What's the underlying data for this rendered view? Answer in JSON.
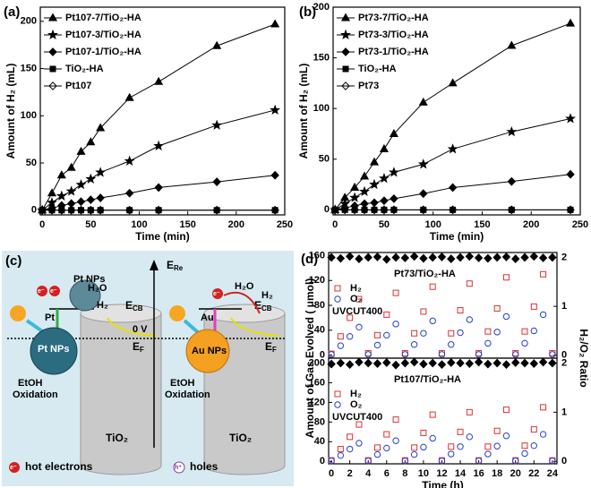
{
  "chart_data": [
    {
      "type": "line",
      "panel_label": "(a)",
      "xlabel": "Time (min)",
      "ylabel": "Amount of H₂ (mL)",
      "x": [
        0,
        10,
        20,
        30,
        40,
        50,
        60,
        90,
        120,
        180,
        240
      ],
      "xlim": [
        -2,
        250
      ],
      "xticks": [
        0,
        50,
        100,
        150,
        200,
        250
      ],
      "ylim": [
        -5,
        215
      ],
      "yticks": [
        0,
        50,
        100,
        150,
        200
      ],
      "legend": "upper left",
      "series": [
        {
          "name": "Pt107-7/TiO₂-HA",
          "color": "#000000",
          "marker": "triangle",
          "values": [
            0,
            18,
            37,
            45,
            62,
            72,
            87,
            119,
            136,
            174,
            197
          ]
        },
        {
          "name": "Pt107-3/TiO₂-HA",
          "color": "#000000",
          "marker": "star",
          "values": [
            0,
            8,
            15,
            20,
            27,
            33,
            40,
            52,
            68,
            90,
            106
          ]
        },
        {
          "name": "Pt107-1/TiO₂-HA",
          "color": "#000000",
          "marker": "diamond",
          "values": [
            0,
            2,
            5,
            7,
            9,
            11,
            13,
            18,
            24,
            30,
            37
          ]
        },
        {
          "name": "TiO₂-HA",
          "color": "#000000",
          "marker": "square",
          "values": [
            0,
            0,
            0,
            0,
            0,
            0,
            0,
            0,
            0,
            0,
            0
          ]
        },
        {
          "name": "Pt107",
          "color": "#000000",
          "marker": "diamond-open",
          "values": [
            0,
            0,
            0,
            0,
            0,
            0,
            0,
            0,
            0,
            0,
            0
          ]
        }
      ]
    },
    {
      "type": "line",
      "panel_label": "(b)",
      "xlabel": "Time (min)",
      "ylabel": "Amount of H₂ (mL)",
      "x": [
        0,
        10,
        20,
        30,
        40,
        50,
        60,
        90,
        120,
        180,
        240
      ],
      "xlim": [
        -2,
        250
      ],
      "xticks": [
        0,
        50,
        100,
        150,
        200,
        250
      ],
      "ylim": [
        -5,
        200
      ],
      "yticks": [
        0,
        50,
        100,
        150,
        200
      ],
      "legend": "upper left",
      "series": [
        {
          "name": "Pt73-7/TiO₂-HA",
          "color": "#000000",
          "marker": "triangle",
          "values": [
            0,
            12,
            22,
            33,
            47,
            60,
            75,
            106,
            125,
            162,
            184
          ]
        },
        {
          "name": "Pt73-3/TiO₂-HA",
          "color": "#000000",
          "marker": "star",
          "values": [
            0,
            6,
            12,
            18,
            25,
            31,
            37,
            45,
            60,
            77,
            90
          ]
        },
        {
          "name": "Pt73-1/TiO₂-HA",
          "color": "#000000",
          "marker": "diamond",
          "values": [
            0,
            2,
            4,
            6,
            7,
            9,
            11,
            16,
            22,
            28,
            35
          ]
        },
        {
          "name": "TiO₂-HA",
          "color": "#000000",
          "marker": "square",
          "values": [
            0,
            0,
            0,
            0,
            0,
            0,
            0,
            0,
            0,
            0,
            0
          ]
        },
        {
          "name": "Pt73",
          "color": "#000000",
          "marker": "diamond-open",
          "values": [
            0,
            0,
            0,
            0,
            0,
            0,
            0,
            0,
            0,
            0,
            0
          ]
        }
      ]
    },
    {
      "type": "scatter",
      "panel_label": "(d)",
      "subtitle": "Pt73/TiO₂-HA",
      "annotation": "UVCUT400",
      "ylabel": "Amount of Gas Evolved ( μmol)",
      "y2label": "H₂/O₂ Ratio",
      "x": [
        0,
        1,
        2,
        3,
        4,
        5,
        6,
        7,
        8,
        9,
        10,
        11,
        12,
        13,
        14,
        15,
        16,
        17,
        18,
        19,
        20,
        21,
        22,
        23,
        24
      ],
      "xlim": [
        -0.3,
        24.5
      ],
      "ylim": [
        -5,
        165
      ],
      "yticks": [
        0,
        40,
        80,
        120,
        160
      ],
      "y2lim": [
        -0.06,
        2.1
      ],
      "y2ticks": [
        0,
        1,
        2
      ],
      "legend": "upper left",
      "series": [
        {
          "name": "H₂",
          "color": "#e03030",
          "marker": "square-open",
          "values": [
            2,
            30,
            60,
            90,
            3,
            32,
            65,
            100,
            3,
            35,
            70,
            110,
            3,
            35,
            72,
            115,
            3,
            38,
            75,
            125,
            3,
            38,
            78,
            130,
            3
          ]
        },
        {
          "name": "O₂",
          "color": "#2040d0",
          "marker": "circle-open",
          "values": [
            1,
            15,
            30,
            45,
            1,
            16,
            32,
            50,
            1,
            17,
            35,
            55,
            1,
            17,
            36,
            57,
            1,
            19,
            37,
            62,
            1,
            19,
            39,
            65,
            1
          ]
        },
        {
          "color": "#000000",
          "marker": "diamond",
          "axis": "y2",
          "values": [
            2.0,
            1.98,
            2.02,
            1.97,
            2.0,
            2.01,
            1.96,
            2.0,
            1.99,
            2.02,
            1.98,
            2.0,
            2.01,
            1.97,
            2.0,
            2.02,
            1.99,
            1.98,
            2.0,
            2.01,
            1.97,
            2.0,
            2.02,
            1.99,
            2.0
          ]
        }
      ]
    },
    {
      "type": "scatter",
      "subtitle": "Pt107/TiO₂-HA",
      "annotation": "UVCUT400",
      "xlabel": "Time (h)",
      "x": [
        0,
        1,
        2,
        3,
        4,
        5,
        6,
        7,
        8,
        9,
        10,
        11,
        12,
        13,
        14,
        15,
        16,
        17,
        18,
        19,
        20,
        21,
        22,
        23,
        24
      ],
      "xlim": [
        -0.3,
        24.5
      ],
      "xticks": [
        0,
        2,
        4,
        6,
        8,
        10,
        12,
        14,
        16,
        18,
        20,
        22,
        24
      ],
      "ylim": [
        -5,
        210
      ],
      "yticks": [
        0,
        40,
        80,
        120,
        160,
        200
      ],
      "y2lim": [
        -0.05,
        2.1
      ],
      "y2ticks": [
        0,
        1,
        2
      ],
      "legend": "upper left",
      "series": [
        {
          "name": "H₂",
          "color": "#e03030",
          "marker": "square-open",
          "values": [
            2,
            25,
            50,
            75,
            2,
            28,
            55,
            85,
            2,
            28,
            58,
            95,
            2,
            30,
            60,
            100,
            2,
            30,
            62,
            105,
            2,
            32,
            65,
            110,
            2
          ]
        },
        {
          "name": "O₂",
          "color": "#2040d0",
          "marker": "circle-open",
          "values": [
            1,
            12,
            25,
            37,
            1,
            14,
            27,
            42,
            1,
            14,
            29,
            47,
            1,
            15,
            30,
            50,
            1,
            15,
            31,
            52,
            1,
            16,
            32,
            55,
            1
          ]
        },
        {
          "color": "#000000",
          "marker": "diamond",
          "axis": "y2",
          "values": [
            1.98,
            2.0,
            1.97,
            2.02,
            2.0,
            1.99,
            2.01,
            1.96,
            2.0,
            2.02,
            1.98,
            2.0,
            1.97,
            2.01,
            2.0,
            1.99,
            2.02,
            1.98,
            2.0,
            1.97,
            2.01,
            2.0,
            1.99,
            2.02,
            2.0
          ]
        }
      ]
    }
  ],
  "diagram": {
    "panel_label": "(c)",
    "pt_nps_top": "Pt NPs",
    "h2o": "H₂O",
    "h2": "H₂",
    "pt": "Pt",
    "au": "Au",
    "pt_nps_sphere": "Pt NPs",
    "au_nps_sphere": "Au NPs",
    "etoh": "EtOH",
    "oxidation": "Oxidation",
    "tio2": "TiO₂",
    "e_re": [
      "E",
      "Re"
    ],
    "e_cb": [
      "E",
      "CB"
    ],
    "e_f": [
      "E",
      "F"
    ],
    "zero_v": "0 V",
    "electron": "e⁻",
    "hole": "h⁺",
    "hot_electrons": "hot electrons",
    "holes": "holes"
  }
}
